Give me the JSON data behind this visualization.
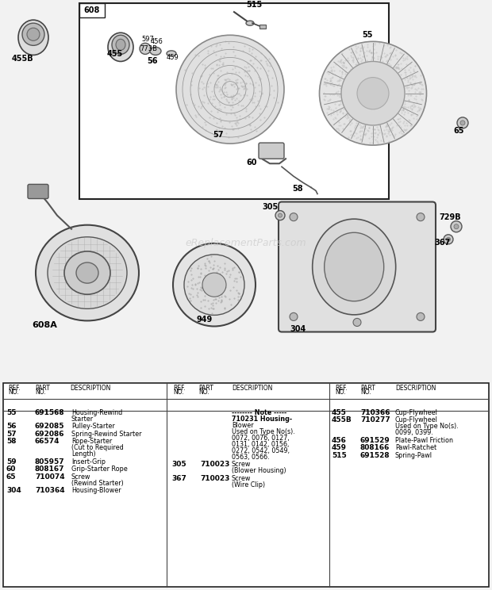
{
  "bg_color": "#f2f2f2",
  "white": "#ffffff",
  "box_border": "#222222",
  "part_color": "#cccccc",
  "light_part": "#e8e8e8",
  "dark_part": "#999999",
  "text_color": "#111111",
  "watermark_color": "#cccccc",
  "watermark": "eReplacementParts.com",
  "table_col1": [
    [
      "55",
      "691568",
      [
        "Housing-Rewind",
        "Starter"
      ]
    ],
    [
      "56",
      "692085",
      [
        "Pulley-Starter"
      ]
    ],
    [
      "57",
      "692086",
      [
        "Spring-Rewind Starter"
      ]
    ],
    [
      "58",
      "66574",
      [
        "Rope-Starter",
        "(Cut to Required",
        "Length)"
      ]
    ],
    [
      "59",
      "805957",
      [
        "Insert-Grip"
      ]
    ],
    [
      "60",
      "808167",
      [
        "Grip-Starter Rope"
      ]
    ],
    [
      "65",
      "710074",
      [
        "Screw",
        "(Rewind Starter)"
      ]
    ],
    [
      "304",
      "710364",
      [
        "Housing-Blower"
      ]
    ]
  ],
  "table_col2": [
    [
      "",
      "",
      [
        "-------- Note -----",
        "710231 Housing-",
        "Blower",
        "Used on Type No(s).",
        "0072, 0076, 0127,",
        "0131, 0142, 0156,",
        "0272, 0542, 0549,",
        "0563, 0566."
      ]
    ],
    [
      "305",
      "710023",
      [
        "Screw",
        "(Blower Housing)"
      ]
    ],
    [
      "367",
      "710023",
      [
        "Screw",
        "(Wire Clip)"
      ]
    ]
  ],
  "table_col3": [
    [
      "455",
      "710366",
      [
        "Cup-Flywheel"
      ]
    ],
    [
      "455B",
      "710277",
      [
        "Cup-Flywheel",
        "Used on Type No(s).",
        "0099, 0399."
      ]
    ],
    [
      "456",
      "691529",
      [
        "Plate-Pawl Friction"
      ]
    ],
    [
      "459",
      "808166",
      [
        "Pawl-Ratchet"
      ]
    ],
    [
      "515",
      "691528",
      [
        "Spring-Pawl"
      ]
    ]
  ]
}
